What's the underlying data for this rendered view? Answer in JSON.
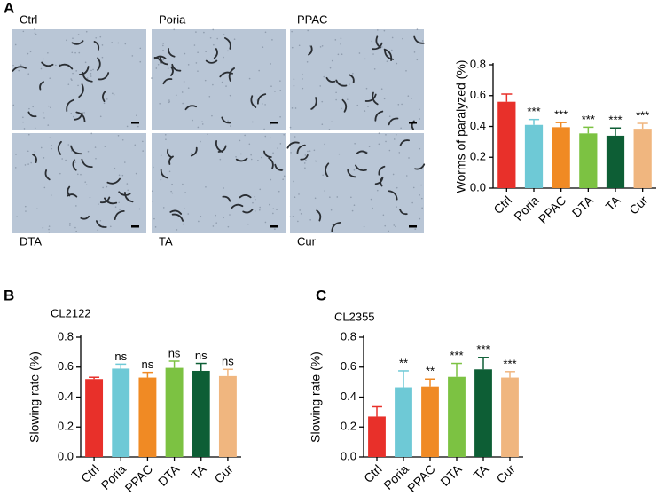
{
  "panels": [
    "A",
    "B",
    "C"
  ],
  "images": [
    {
      "label": "Ctrl"
    },
    {
      "label": "Poria"
    },
    {
      "label": "PPAC"
    },
    {
      "label": "DTA"
    },
    {
      "label": "TA"
    },
    {
      "label": "Cur"
    }
  ],
  "chart_data": [
    {
      "type": "bar",
      "y_label": "Worms of paralyzed (%)",
      "categories": [
        "Ctrl",
        "Poria",
        "PPAC",
        "DTA",
        "TA",
        "Cur"
      ],
      "values": [
        0.56,
        0.41,
        0.395,
        0.355,
        0.34,
        0.385
      ],
      "errors": [
        0.05,
        0.035,
        0.03,
        0.04,
        0.05,
        0.035
      ],
      "annotations": [
        null,
        "***",
        "***",
        "***",
        "***",
        "***"
      ],
      "colors": [
        "#e8302a",
        "#6ec9d6",
        "#f08a24",
        "#7cc242",
        "#0d5e35",
        "#f0b67f"
      ],
      "ylim": [
        0,
        0.8
      ],
      "yticks": [
        {
          "value": 0,
          "label": "0.0"
        },
        0.2,
        0.4,
        0.6,
        0.8
      ]
    },
    {
      "type": "bar",
      "title": "CL2122",
      "y_label": "Slowing rate (%)",
      "categories": [
        "Ctrl",
        "Poria",
        "PPAC",
        "DTA",
        "TA",
        "Cur"
      ],
      "values": [
        0.52,
        0.59,
        0.53,
        0.595,
        0.575,
        0.54
      ],
      "errors": [
        0.012,
        0.03,
        0.035,
        0.045,
        0.05,
        0.045
      ],
      "annotations": [
        null,
        "ns",
        "ns",
        "ns",
        "ns",
        "ns"
      ],
      "colors": [
        "#e8302a",
        "#6ec9d6",
        "#f08a24",
        "#7cc242",
        "#0d5e35",
        "#f0b67f"
      ],
      "ylim": [
        0,
        0.8
      ],
      "yticks": [
        {
          "value": 0,
          "label": "0.0"
        },
        0.2,
        0.4,
        0.6,
        0.8
      ]
    },
    {
      "type": "bar",
      "title": "CL2355",
      "y_label": "Slowing rate (%)",
      "categories": [
        "Ctrl",
        "Poria",
        "PPAC",
        "DTA",
        "TA",
        "Cur"
      ],
      "values": [
        0.27,
        0.465,
        0.47,
        0.535,
        0.585,
        0.53
      ],
      "errors": [
        0.065,
        0.11,
        0.05,
        0.09,
        0.08,
        0.04
      ],
      "annotations": [
        null,
        "**",
        "**",
        "***",
        "***",
        "***"
      ],
      "colors": [
        "#e8302a",
        "#6ec9d6",
        "#f08a24",
        "#7cc242",
        "#0d5e35",
        "#f0b67f"
      ],
      "ylim": [
        0,
        0.8
      ],
      "yticks": [
        {
          "value": 0,
          "label": "0.0"
        },
        0.2,
        0.4,
        0.6,
        0.8
      ]
    }
  ]
}
